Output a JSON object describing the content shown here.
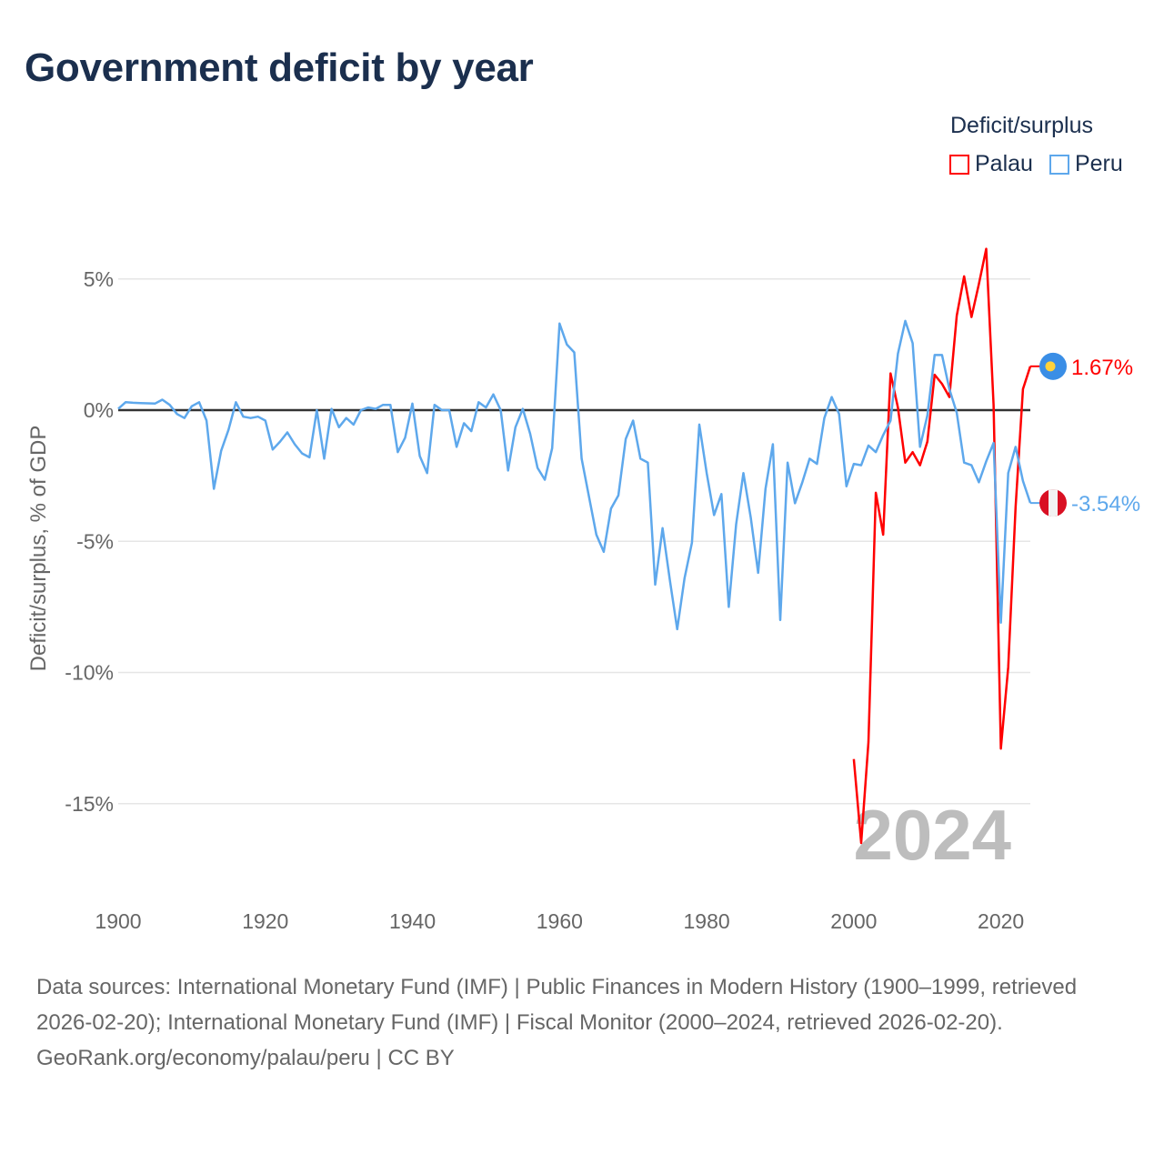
{
  "title": "Government deficit by year",
  "legend": {
    "title": "Deficit/surplus",
    "items": [
      {
        "label": "Palau",
        "color": "#ff0000"
      },
      {
        "label": "Peru",
        "color": "#5ea8ec"
      }
    ]
  },
  "footer": {
    "sources": "Data sources: International Monetary Fund (IMF) | Public Finances in Modern History (1900–1999, retrieved 2026-02-20); International Monetary Fund (IMF) | Fiscal Monitor (2000–2024, retrieved 2026-02-20).",
    "credit": "GeoRank.org/economy/palau/peru | CC BY"
  },
  "chart_data": {
    "type": "line",
    "title": "Government deficit by year",
    "xlabel": "",
    "ylabel": "Deficit/surplus, % of GDP",
    "xlim": [
      1900,
      2024
    ],
    "ylim": [
      -17.5,
      7
    ],
    "x_ticks": [
      "1900",
      "1920",
      "1940",
      "1960",
      "1980",
      "2000",
      "2020"
    ],
    "y_ticks": [
      {
        "value": 5,
        "label": "5%"
      },
      {
        "value": 0,
        "label": "0%"
      },
      {
        "value": -5,
        "label": "-5%"
      },
      {
        "value": -10,
        "label": "-10%"
      },
      {
        "value": -15,
        "label": "-15%"
      }
    ],
    "grid": true,
    "year_watermark": "2024",
    "series": [
      {
        "name": "Palau",
        "color": "#ff0000",
        "start_year": 2000,
        "values": [
          -13.3,
          -16.5,
          -12.65,
          -3.15,
          -4.75,
          1.4,
          0.1,
          -2.0,
          -1.6,
          -2.1,
          -1.2,
          1.35,
          1.0,
          0.5,
          3.6,
          5.1,
          3.55,
          4.8,
          6.15,
          0.2,
          -12.9,
          -9.8,
          -3.7,
          0.8,
          1.67
        ],
        "end_label": "1.67%",
        "flag": "palau-flag"
      },
      {
        "name": "Peru",
        "color": "#5ea8ec",
        "start_year": 1900,
        "values": [
          0.05,
          0.3,
          0.28,
          0.27,
          0.26,
          0.25,
          0.4,
          0.2,
          -0.15,
          -0.3,
          0.15,
          0.3,
          -0.4,
          -3.0,
          -1.55,
          -0.75,
          0.3,
          -0.25,
          -0.3,
          -0.25,
          -0.4,
          -1.5,
          -1.2,
          -0.85,
          -1.3,
          -1.65,
          -1.8,
          0,
          -1.85,
          0.05,
          -0.65,
          -0.3,
          -0.55,
          0,
          0.1,
          0.05,
          0.2,
          0.2,
          -1.6,
          -1.05,
          0.25,
          -1.75,
          -2.4,
          0.2,
          0,
          0,
          -1.4,
          -0.5,
          -0.8,
          0.3,
          0.1,
          0.6,
          0,
          -2.3,
          -0.65,
          0.05,
          -0.9,
          -2.2,
          -2.65,
          -1.45,
          3.3,
          2.5,
          2.2,
          -1.85,
          -3.3,
          -4.75,
          -5.4,
          -3.75,
          -3.25,
          -1.1,
          -0.4,
          -1.85,
          -2.0,
          -6.65,
          -4.5,
          -6.5,
          -8.35,
          -6.4,
          -5.05,
          -0.55,
          -2.4,
          -4.0,
          -3.2,
          -7.5,
          -4.35,
          -2.4,
          -4.1,
          -6.2,
          -3.0,
          -1.3,
          -8.0,
          -2.0,
          -3.55,
          -2.75,
          -1.85,
          -2.05,
          -0.3,
          0.5,
          -0.15,
          -2.9,
          -2.05,
          -2.1,
          -1.35,
          -1.6,
          -0.95,
          -0.4,
          2.15,
          3.4,
          2.55,
          -1.4,
          -0.2,
          2.1,
          2.1,
          0.8,
          -0.1,
          -2.0,
          -2.1,
          -2.75,
          -1.95,
          -1.25,
          -8.1,
          -2.4,
          -1.4,
          -2.7,
          -3.54
        ],
        "end_label": "-3.54%",
        "flag": "peru-flag"
      }
    ]
  }
}
